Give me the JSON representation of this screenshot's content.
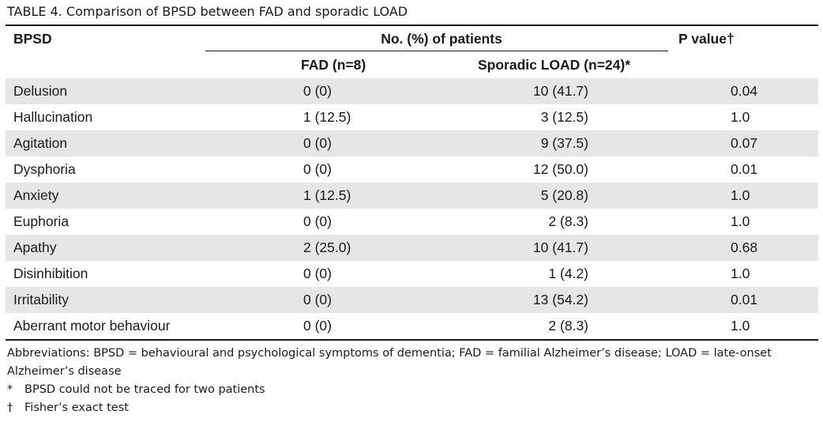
{
  "title": "TABLE 4.  Comparison of BPSD between FAD and sporadic LOAD",
  "header": {
    "bpsd": "BPSD",
    "group": "No. (%) of patients",
    "fad": "FAD (n=8)",
    "load": "Sporadic LOAD (n=24)*",
    "p": "P value†"
  },
  "rows": [
    {
      "name": "Delusion",
      "fad": "0 (0)",
      "load": "10 (41.7)",
      "p": "0.04"
    },
    {
      "name": "Hallucination",
      "fad": "1 (12.5)",
      "load": "3 (12.5)",
      "p": "1.0"
    },
    {
      "name": "Agitation",
      "fad": "0 (0)",
      "load": "9 (37.5)",
      "p": "0.07"
    },
    {
      "name": "Dysphoria",
      "fad": "0 (0)",
      "load": "12 (50.0)",
      "p": "0.01"
    },
    {
      "name": "Anxiety",
      "fad": "1 (12.5)",
      "load": "5 (20.8)",
      "p": "1.0"
    },
    {
      "name": "Euphoria",
      "fad": "0 (0)",
      "load": "2 (8.3)",
      "p": "1.0"
    },
    {
      "name": "Apathy",
      "fad": "2 (25.0)",
      "load": "10 (41.7)",
      "p": "0.68"
    },
    {
      "name": "Disinhibition",
      "fad": "0 (0)",
      "load": "1 (4.2)",
      "p": "1.0"
    },
    {
      "name": "Irritability",
      "fad": "0 (0)",
      "load": "13 (54.2)",
      "p": "0.01"
    },
    {
      "name": "Aberrant motor behaviour",
      "fad": "0 (0)",
      "load": "2 (8.3)",
      "p": "1.0"
    }
  ],
  "notes": {
    "abbreviations_line1": "Abbreviations: BPSD = behavioural and psychological symptoms of dementia; FAD = familial Alzheimer’s disease; LOAD = late-onset",
    "abbreviations_line2": "Alzheimer’s disease",
    "footnote1_symbol": "*",
    "footnote1_text": "BPSD could not be traced for two patients",
    "footnote2_symbol": "†",
    "footnote2_text": "Fisher’s exact test"
  }
}
